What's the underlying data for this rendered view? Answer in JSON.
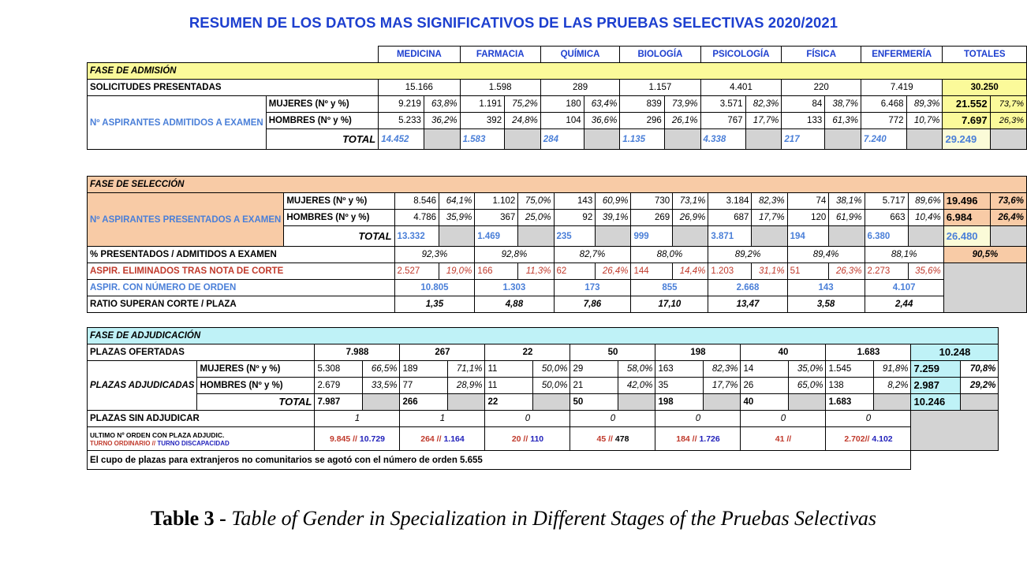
{
  "title": "RESUMEN DE LOS DATOS MAS SIGNIFICATIVOS DE LAS PRUEBAS SELECTIVAS 2020/2021",
  "columns": [
    "MEDICINA",
    "FARMACIA",
    "QUÍMICA",
    "BIOLOGÍA",
    "PSICOLOGÍA",
    "FÍSICA",
    "ENFERMERÍA"
  ],
  "totales_label": "TOTALES",
  "admision": {
    "section_label": "FASE DE ADMISIÓN",
    "solicitudes_label": "SOLICITUDES PRESENTADAS",
    "solicitudes": [
      "15.166",
      "1.598",
      "289",
      "1.157",
      "4.401",
      "220",
      "7.419"
    ],
    "solicitudes_total": "30.250",
    "group_label": "Nº ASPIRANTES ADMITIDOS A EXAMEN",
    "mujeres_label": "MUJERES (Nº y %)",
    "hombres_label": "HOMBRES (Nº y %)",
    "total_label": "TOTAL",
    "mujeres": [
      [
        "9.219",
        "63,8%"
      ],
      [
        "1.191",
        "75,2%"
      ],
      [
        "180",
        "63,4%"
      ],
      [
        "839",
        "73,9%"
      ],
      [
        "3.571",
        "82,3%"
      ],
      [
        "84",
        "38,7%"
      ],
      [
        "6.468",
        "89,3%"
      ]
    ],
    "mujeres_total": [
      "21.552",
      "73,7%"
    ],
    "hombres": [
      [
        "5.233",
        "36,2%"
      ],
      [
        "392",
        "24,8%"
      ],
      [
        "104",
        "36,6%"
      ],
      [
        "296",
        "26,1%"
      ],
      [
        "767",
        "17,7%"
      ],
      [
        "133",
        "61,3%"
      ],
      [
        "772",
        "10,7%"
      ]
    ],
    "hombres_total": [
      "7.697",
      "26,3%"
    ],
    "totals": [
      "14.452",
      "1.583",
      "284",
      "1.135",
      "4.338",
      "217",
      "7.240"
    ],
    "totals_total": "29.249"
  },
  "seleccion": {
    "section_label": "FASE DE SELECCIÓN",
    "group_label": "Nº ASPIRANTES PRESENTADOS A EXAMEN",
    "mujeres_label": "MUJERES (Nº y %)",
    "hombres_label": "HOMBRES (Nº y %)",
    "total_label": "TOTAL",
    "mujeres": [
      [
        "8.546",
        "64,1%"
      ],
      [
        "1.102",
        "75,0%"
      ],
      [
        "143",
        "60,9%"
      ],
      [
        "730",
        "73,1%"
      ],
      [
        "3.184",
        "82,3%"
      ],
      [
        "74",
        "38,1%"
      ],
      [
        "5.717",
        "89,6%"
      ]
    ],
    "mujeres_total": [
      "19.496",
      "73,6%"
    ],
    "hombres": [
      [
        "4.786",
        "35,9%"
      ],
      [
        "367",
        "25,0%"
      ],
      [
        "92",
        "39,1%"
      ],
      [
        "269",
        "26,9%"
      ],
      [
        "687",
        "17,7%"
      ],
      [
        "120",
        "61,9%"
      ],
      [
        "663",
        "10,4%"
      ]
    ],
    "hombres_total": [
      "6.984",
      "26,4%"
    ],
    "totals": [
      "13.332",
      "1.469",
      "235",
      "999",
      "3.871",
      "194",
      "6.380"
    ],
    "totals_total": "26.480",
    "pct_label": "% PRESENTADOS / ADMITIDOS A EXAMEN",
    "pct": [
      "92,3%",
      "92,8%",
      "82,7%",
      "88,0%",
      "89,2%",
      "89,4%",
      "88,1%"
    ],
    "pct_total": "90,5%",
    "elim_label": "ASPIR. ELIMINADOS TRAS NOTA DE CORTE",
    "elim": [
      [
        "2.527",
        "19,0%"
      ],
      [
        "166",
        "11,3%"
      ],
      [
        "62",
        "26,4%"
      ],
      [
        "144",
        "14,4%"
      ],
      [
        "1.203",
        "31,1%"
      ],
      [
        "51",
        "26,3%"
      ],
      [
        "2.273",
        "35,6%"
      ]
    ],
    "orden_label": "ASPIR. CON NÚMERO DE ORDEN",
    "orden": [
      "10.805",
      "1.303",
      "173",
      "855",
      "2.668",
      "143",
      "4.107"
    ],
    "ratio_label": "RATIO SUPERAN CORTE  / PLAZA",
    "ratio": [
      "1,35",
      "4,88",
      "7,86",
      "17,10",
      "13,47",
      "3,58",
      "2,44"
    ]
  },
  "adjudicacion": {
    "section_label": "FASE DE ADJUDICACIÓN",
    "plazas_label": "PLAZAS OFERTADAS",
    "plazas": [
      "7.988",
      "267",
      "22",
      "50",
      "198",
      "40",
      "1.683"
    ],
    "plazas_total": "10.248",
    "group_label": "PLAZAS ADJUDICADAS",
    "mujeres_label": "MUJERES (Nº y %)",
    "hombres_label": "HOMBRES (Nº y %)",
    "total_label": "TOTAL",
    "mujeres": [
      [
        "5.308",
        "66,5%"
      ],
      [
        "189",
        "71,1%"
      ],
      [
        "11",
        "50,0%"
      ],
      [
        "29",
        "58,0%"
      ],
      [
        "163",
        "82,3%"
      ],
      [
        "14",
        "35,0%"
      ],
      [
        "1.545",
        "91,8%"
      ]
    ],
    "mujeres_total": [
      "7.259",
      "70,8%"
    ],
    "hombres": [
      [
        "2.679",
        "33,5%"
      ],
      [
        "77",
        "28,9%"
      ],
      [
        "11",
        "50,0%"
      ],
      [
        "21",
        "42,0%"
      ],
      [
        "35",
        "17,7%"
      ],
      [
        "26",
        "65,0%"
      ],
      [
        "138",
        "8,2%"
      ]
    ],
    "hombres_total": [
      "2.987",
      "29,2%"
    ],
    "totals": [
      "7.987",
      "266",
      "22",
      "50",
      "198",
      "40",
      "1.683"
    ],
    "totals_total": "10.246",
    "sin_label": "PLAZAS SIN ADJUDICAR",
    "sin": [
      "1",
      "1",
      "0",
      "0",
      "0",
      "0",
      "0"
    ],
    "ultimo_label": "ULTIMO Nº ORDEN CON PLAZA ADJUDIC.",
    "turno_ord": "TURNO ORDINARIO",
    "turno_sep": " // ",
    "turno_dis": "TURNO DISCAPACIDAD",
    "ultimo": [
      [
        "9.845 //",
        "10.729"
      ],
      [
        "264 //",
        "1.164"
      ],
      [
        "20 //",
        "110"
      ],
      [
        "45 //",
        "478"
      ],
      [
        "184 //",
        "1.726"
      ],
      [
        "41 //",
        ""
      ],
      [
        "2.702//",
        "4.102"
      ]
    ],
    "note": "El cupo de plazas para extranjeros no comunitarios se agotó con el número de orden 5.655"
  },
  "caption": {
    "label": "Table 3 - ",
    "text": "Table of Gender in Specialization in Different Stages of the Pruebas Selectivas"
  }
}
